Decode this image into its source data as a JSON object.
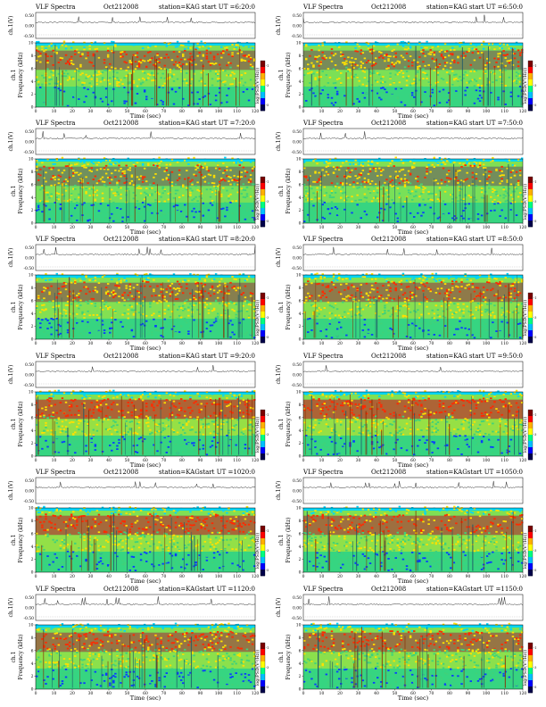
{
  "page": {
    "title_prefix": "VLF Spectra",
    "date": "Oct212008",
    "station": "station=KAG",
    "start_label": "start  UT ="
  },
  "axis": {
    "ch1_label": "ch.1(V)",
    "freq_label": "Frequency (kHz)",
    "freq_prefix": "ch.1",
    "time_label": "Time  (sec)",
    "colorbar_label": "log(PSD(V²/Hz))",
    "ch1_ticks": [
      "0.50",
      "0.00",
      "-0.50"
    ],
    "freq_ticks": [
      0,
      2,
      4,
      6,
      8,
      10
    ],
    "time_ticks": [
      0,
      10,
      20,
      30,
      40,
      50,
      60,
      70,
      80,
      90,
      100,
      110,
      120
    ],
    "colorbar_ticks": [
      "-1",
      "-3",
      "-5"
    ]
  },
  "colors": {
    "background": "#00e0a8",
    "low": "#0a3cff",
    "mid": "#3fd27a",
    "high": "#ffe000",
    "peak": "#ff2a00",
    "top_band": "#00d4ff",
    "colorbar": [
      "#7a0000",
      "#ff0000",
      "#ffb000",
      "#ffff00",
      "#00ff80",
      "#00c0ff",
      "#0000ff",
      "#00004a"
    ]
  },
  "chart_data": [
    {
      "type": "heatmap",
      "start_ut": "6:20:0",
      "xlim": [
        0,
        120
      ],
      "ylim": [
        0,
        10
      ],
      "red_band_intensity": 0.55
    },
    {
      "type": "heatmap",
      "start_ut": "6:50:0",
      "xlim": [
        0,
        120
      ],
      "ylim": [
        0,
        10
      ],
      "red_band_intensity": 0.45
    },
    {
      "type": "heatmap",
      "start_ut": "7:20:0",
      "xlim": [
        0,
        120
      ],
      "ylim": [
        0,
        10
      ],
      "red_band_intensity": 0.4
    },
    {
      "type": "heatmap",
      "start_ut": "7:50:0",
      "xlim": [
        0,
        120
      ],
      "ylim": [
        0,
        10
      ],
      "red_band_intensity": 0.42
    },
    {
      "type": "heatmap",
      "start_ut": "8:20:0",
      "xlim": [
        0,
        120
      ],
      "ylim": [
        0,
        10
      ],
      "red_band_intensity": 0.55
    },
    {
      "type": "heatmap",
      "start_ut": "8:50:0",
      "xlim": [
        0,
        120
      ],
      "ylim": [
        0,
        10
      ],
      "red_band_intensity": 0.6
    },
    {
      "type": "heatmap",
      "start_ut": "9:20:0",
      "xlim": [
        0,
        120
      ],
      "ylim": [
        0,
        10
      ],
      "red_band_intensity": 0.8
    },
    {
      "type": "heatmap",
      "start_ut": "9:50:0",
      "xlim": [
        0,
        120
      ],
      "ylim": [
        0,
        10
      ],
      "red_band_intensity": 0.8
    },
    {
      "type": "heatmap",
      "start_ut": "1020:0",
      "xlim": [
        0,
        120
      ],
      "ylim": [
        0,
        10
      ],
      "red_band_intensity": 0.75
    },
    {
      "type": "heatmap",
      "start_ut": "1050:0",
      "xlim": [
        0,
        120
      ],
      "ylim": [
        0,
        10
      ],
      "red_band_intensity": 0.7
    },
    {
      "type": "heatmap",
      "start_ut": "1120:0",
      "xlim": [
        0,
        120
      ],
      "ylim": [
        0,
        10
      ],
      "red_band_intensity": 0.65
    },
    {
      "type": "heatmap",
      "start_ut": "1150:0",
      "xlim": [
        0,
        120
      ],
      "ylim": [
        0,
        10
      ],
      "red_band_intensity": 0.65
    }
  ]
}
